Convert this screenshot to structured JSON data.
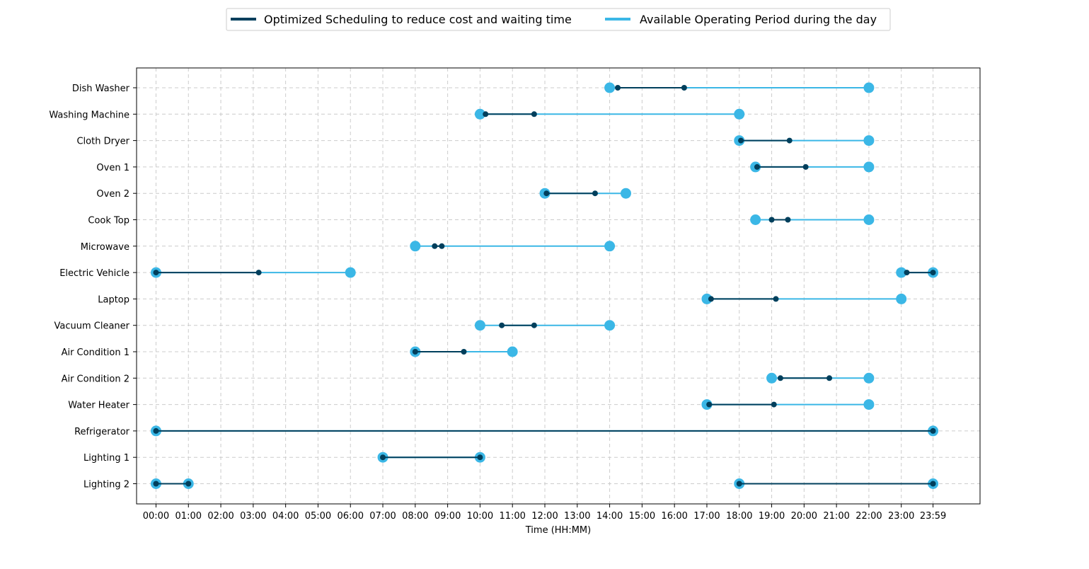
{
  "chart_data": {
    "type": "dumbbell-timeline",
    "xlabel": "Time (HH:MM)",
    "ylabel": "",
    "xlim": [
      -0.6,
      25.43
    ],
    "grid": true,
    "legend_position": "top-center",
    "x_ticks": [
      {
        "value": 0,
        "label": "00:00"
      },
      {
        "value": 1,
        "label": "01:00"
      },
      {
        "value": 2,
        "label": "02:00"
      },
      {
        "value": 3,
        "label": "03:00"
      },
      {
        "value": 4,
        "label": "04:00"
      },
      {
        "value": 5,
        "label": "05:00"
      },
      {
        "value": 6,
        "label": "06:00"
      },
      {
        "value": 7,
        "label": "07:00"
      },
      {
        "value": 8,
        "label": "08:00"
      },
      {
        "value": 9,
        "label": "09:00"
      },
      {
        "value": 10,
        "label": "10:00"
      },
      {
        "value": 11,
        "label": "11:00"
      },
      {
        "value": 12,
        "label": "12:00"
      },
      {
        "value": 13,
        "label": "13:00"
      },
      {
        "value": 14,
        "label": "14:00"
      },
      {
        "value": 15,
        "label": "15:00"
      },
      {
        "value": 16,
        "label": "16:00"
      },
      {
        "value": 17,
        "label": "17:00"
      },
      {
        "value": 18,
        "label": "18:00"
      },
      {
        "value": 19,
        "label": "19:00"
      },
      {
        "value": 20,
        "label": "20:00"
      },
      {
        "value": 21,
        "label": "21:00"
      },
      {
        "value": 22,
        "label": "22:00"
      },
      {
        "value": 23,
        "label": "23:00"
      },
      {
        "value": 23.98,
        "label": "23:59"
      }
    ],
    "series": [
      {
        "name": "Optimized Scheduling to reduce cost and waiting time",
        "color": "#003f5c"
      },
      {
        "name": "Available Operating Period during the day",
        "color": "#3bb7e6"
      }
    ],
    "appliances": [
      {
        "name": "Dish Washer",
        "available": [
          [
            14.0,
            22.0
          ]
        ],
        "scheduled": [
          [
            14.25,
            16.3
          ]
        ]
      },
      {
        "name": "Washing Machine",
        "available": [
          [
            10.0,
            18.0
          ]
        ],
        "scheduled": [
          [
            10.17,
            11.67
          ]
        ]
      },
      {
        "name": "Cloth Dryer",
        "available": [
          [
            18.0,
            22.0
          ]
        ],
        "scheduled": [
          [
            18.05,
            19.55
          ]
        ]
      },
      {
        "name": "Oven 1",
        "available": [
          [
            18.5,
            22.0
          ]
        ],
        "scheduled": [
          [
            18.55,
            20.05
          ]
        ]
      },
      {
        "name": "Oven 2",
        "available": [
          [
            12.0,
            14.5
          ]
        ],
        "scheduled": [
          [
            12.05,
            13.55
          ]
        ]
      },
      {
        "name": "Cook Top",
        "available": [
          [
            18.5,
            22.0
          ]
        ],
        "scheduled": [
          [
            19.0,
            19.5
          ]
        ]
      },
      {
        "name": "Microwave",
        "available": [
          [
            8.0,
            14.0
          ]
        ],
        "scheduled": [
          [
            8.6,
            8.82
          ]
        ]
      },
      {
        "name": "Electric Vehicle",
        "available": [
          [
            0.0,
            6.0
          ],
          [
            23.0,
            23.98
          ]
        ],
        "scheduled": [
          [
            0.0,
            3.17
          ],
          [
            23.17,
            23.98
          ]
        ]
      },
      {
        "name": "Laptop",
        "available": [
          [
            17.0,
            23.0
          ]
        ],
        "scheduled": [
          [
            17.13,
            19.13
          ]
        ]
      },
      {
        "name": "Vacuum Cleaner",
        "available": [
          [
            10.0,
            14.0
          ]
        ],
        "scheduled": [
          [
            10.67,
            11.67
          ]
        ]
      },
      {
        "name": "Air Condition 1",
        "available": [
          [
            8.0,
            11.0
          ]
        ],
        "scheduled": [
          [
            8.0,
            9.5
          ]
        ]
      },
      {
        "name": "Air Condition 2",
        "available": [
          [
            19.0,
            22.0
          ]
        ],
        "scheduled": [
          [
            19.27,
            20.78
          ]
        ]
      },
      {
        "name": "Water Heater",
        "available": [
          [
            17.0,
            22.0
          ]
        ],
        "scheduled": [
          [
            17.07,
            19.07
          ]
        ]
      },
      {
        "name": "Refrigerator",
        "available": [
          [
            0.0,
            23.98
          ]
        ],
        "scheduled": [
          [
            0.0,
            23.98
          ]
        ]
      },
      {
        "name": "Lighting 1",
        "available": [
          [
            7.0,
            10.0
          ]
        ],
        "scheduled": [
          [
            7.0,
            10.0
          ]
        ]
      },
      {
        "name": "Lighting 2",
        "available": [
          [
            0.0,
            1.0
          ],
          [
            18.0,
            23.98
          ]
        ],
        "scheduled": [
          [
            0.0,
            1.0
          ],
          [
            18.0,
            23.98
          ]
        ]
      }
    ]
  }
}
